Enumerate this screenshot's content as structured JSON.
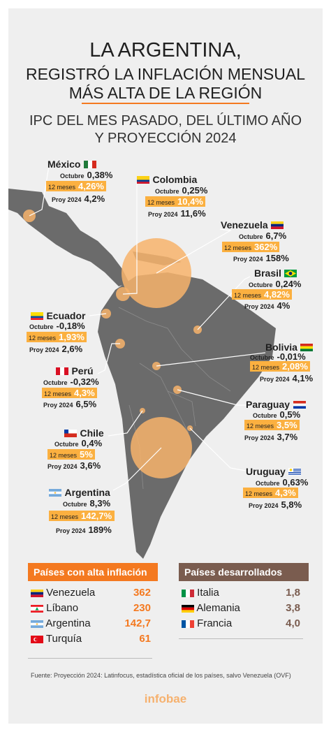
{
  "title": {
    "line1": "LA ARGENTINA,",
    "line2": "REGISTRÓ LA INFLACIÓN MENSUAL",
    "line3": "MÁS ALTA DE LA REGIÓN"
  },
  "subtitle": {
    "line1": "IPC DEL MES PASADO, DEL ÚLTIMO AÑO",
    "line2": "Y PROYECCIÓN 2024"
  },
  "row_labels": {
    "month": "Octubre",
    "year": "12 meses",
    "proj": "Proy 2024"
  },
  "countries": {
    "mexico": {
      "name": "México",
      "month": "0,38%",
      "year": "4,26%",
      "proj": "4,2%"
    },
    "colombia": {
      "name": "Colombia",
      "month": "0,25%",
      "year": "10,4%",
      "proj": "11,6%"
    },
    "venezuela": {
      "name": "Venezuela",
      "month": "6,7%",
      "year": "362%",
      "proj": "158%"
    },
    "brasil": {
      "name": "Brasil",
      "month": "0,24%",
      "year": "4,82%",
      "proj": "4%"
    },
    "ecuador": {
      "name": "Ecuador",
      "month": "-0,18%",
      "year": "1,93%",
      "proj": "2,6%"
    },
    "bolivia": {
      "name": "Bolivia",
      "month": "-0,01%",
      "year": "2,08%",
      "proj": "4,1%"
    },
    "peru": {
      "name": "Perú",
      "month": "-0,32%",
      "year": "4,3%",
      "proj": "6,5%"
    },
    "paraguay": {
      "name": "Paraguay",
      "month": "0,5%",
      "year": "3,5%",
      "proj": "3,7%"
    },
    "chile": {
      "name": "Chile",
      "month": "0,4%",
      "year": "5%",
      "proj": "3,6%"
    },
    "uruguay": {
      "name": "Uruguay",
      "month": "0,63%",
      "year": "4,3%",
      "proj": "5,8%"
    },
    "argentina": {
      "name": "Argentina",
      "month": "8,3%",
      "year": "142,7%",
      "proj": "189%"
    }
  },
  "high_inflation": {
    "header": "Países con alta inflación",
    "color": "#f47920",
    "rows": [
      {
        "name": "Venezuela",
        "value": "362"
      },
      {
        "name": "Líbano",
        "value": "230"
      },
      {
        "name": "Argentina",
        "value": "142,7"
      },
      {
        "name": "Turquía",
        "value": "61"
      }
    ]
  },
  "developed": {
    "header": "Países desarrollados",
    "color": "#7a5c4f",
    "rows": [
      {
        "name": "Italia",
        "value": "1,8"
      },
      {
        "name": "Alemania",
        "value": "3,8"
      },
      {
        "name": "Francia",
        "value": "4,0"
      }
    ]
  },
  "footer": {
    "source": "Fuente:  Proyección 2024: Latinfocus, estadística oficial de los países, salvo Venezuela (OVF)",
    "brand": "infobae"
  },
  "colors": {
    "accent": "#f47920",
    "highlight": "#fbb040",
    "bubble": "#f7b36b",
    "land": "#6b6b6b"
  }
}
